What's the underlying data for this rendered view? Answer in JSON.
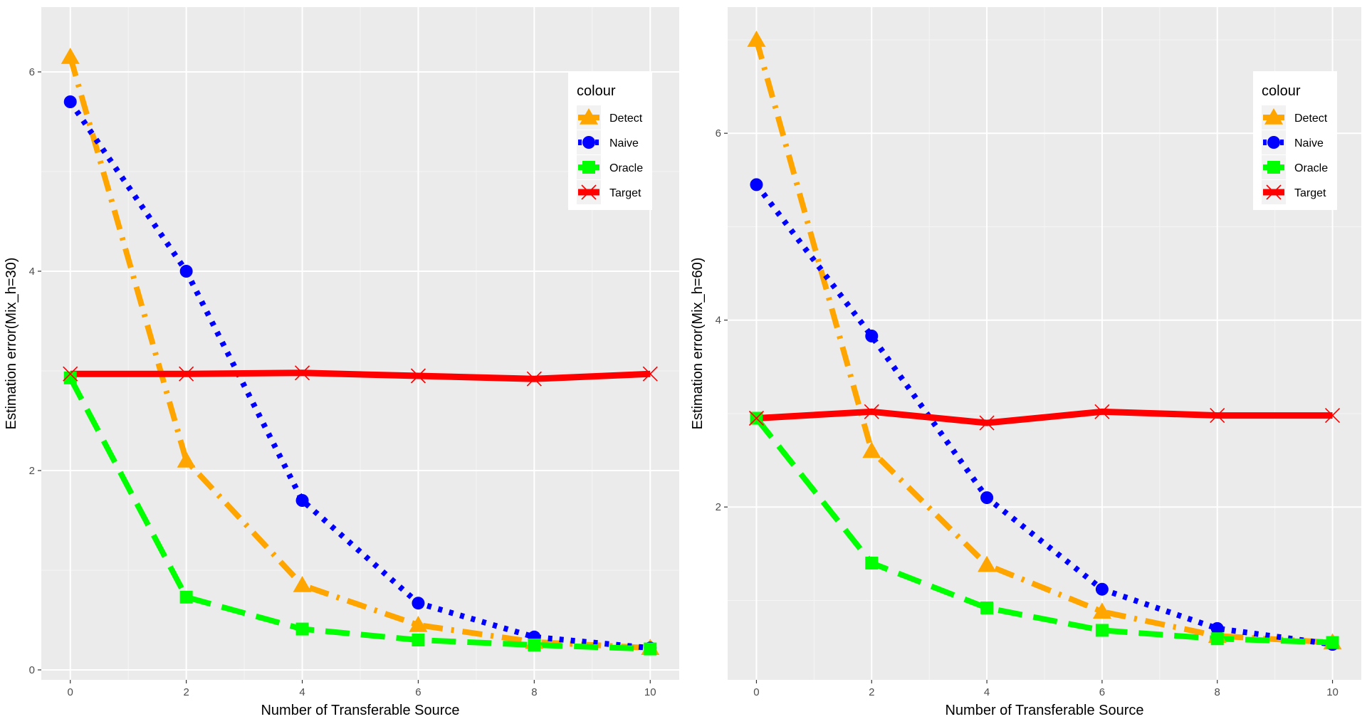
{
  "chart_data": [
    {
      "type": "line",
      "title": "",
      "xlabel": "Number of Transferable Source",
      "ylabel": "Estimation error(Mix_h=30)",
      "x": [
        0,
        2,
        4,
        6,
        8,
        10
      ],
      "xlim": [
        -0.5,
        10.5
      ],
      "ylim": [
        -0.1,
        6.65
      ],
      "xticks": [
        0,
        2,
        4,
        6,
        8,
        10
      ],
      "xtick_labels": [
        "0",
        "2",
        "4",
        "6",
        "8",
        "10"
      ],
      "yticks": [
        0,
        2,
        4,
        6
      ],
      "ytick_labels": [
        "0",
        "2",
        "4",
        "6"
      ],
      "grid": true,
      "legend": {
        "title": "colour",
        "position": "top-right"
      },
      "series": [
        {
          "name": "Detect",
          "color": "#FFA500",
          "values": [
            6.15,
            2.1,
            0.85,
            0.45,
            0.28,
            0.22
          ]
        },
        {
          "name": "Naive",
          "color": "#0000FF",
          "values": [
            5.7,
            4.0,
            1.7,
            0.67,
            0.33,
            0.22
          ]
        },
        {
          "name": "Oracle",
          "color": "#00FF00",
          "values": [
            2.93,
            0.73,
            0.41,
            0.3,
            0.25,
            0.21
          ]
        },
        {
          "name": "Target",
          "color": "#FF0000",
          "values": [
            2.97,
            2.97,
            2.98,
            2.95,
            2.92,
            2.97
          ]
        }
      ]
    },
    {
      "type": "line",
      "title": "",
      "xlabel": "Number of Transferable Source",
      "ylabel": "Estimation error(Mix_h=60)",
      "x": [
        0,
        2,
        4,
        6,
        8,
        10
      ],
      "xlim": [
        -0.5,
        10.5
      ],
      "ylim": [
        0.15,
        7.35
      ],
      "xticks": [
        0,
        2,
        4,
        6,
        8,
        10
      ],
      "xtick_labels": [
        "0",
        "2",
        "4",
        "6",
        "8",
        "10"
      ],
      "yticks": [
        2,
        4,
        6
      ],
      "ytick_labels": [
        "2",
        "4",
        "6"
      ],
      "grid": true,
      "legend": {
        "title": "colour",
        "position": "top-right"
      },
      "series": [
        {
          "name": "Detect",
          "color": "#FFA500",
          "values": [
            7.0,
            2.6,
            1.38,
            0.88,
            0.62,
            0.55
          ]
        },
        {
          "name": "Naive",
          "color": "#0000FF",
          "values": [
            5.45,
            3.83,
            2.1,
            1.12,
            0.7,
            0.53
          ]
        },
        {
          "name": "Oracle",
          "color": "#00FF00",
          "values": [
            2.95,
            1.4,
            0.92,
            0.68,
            0.59,
            0.55
          ]
        },
        {
          "name": "Target",
          "color": "#FF0000",
          "values": [
            2.95,
            3.02,
            2.9,
            3.02,
            2.98,
            2.98
          ]
        }
      ]
    }
  ]
}
